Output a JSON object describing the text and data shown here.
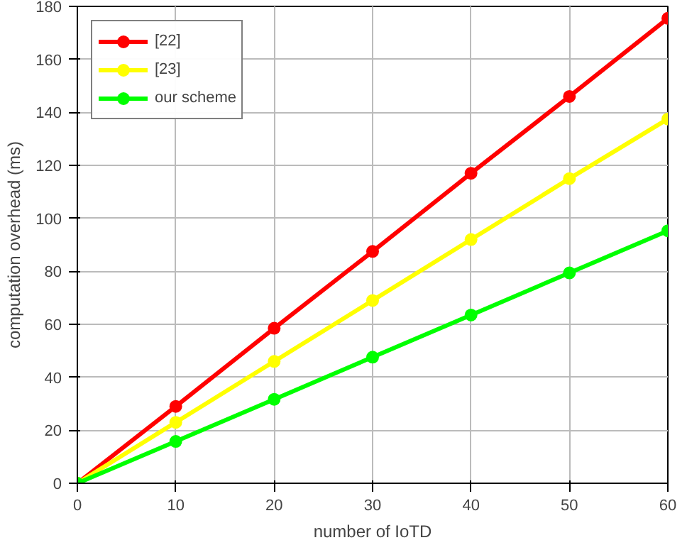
{
  "chart_data": {
    "type": "line",
    "xlabel": "number of IoTD",
    "ylabel": "computation overhead (ms)",
    "x": [
      0,
      10,
      20,
      30,
      40,
      50,
      60
    ],
    "series": [
      {
        "name": "[22]",
        "color": "#ff0000",
        "values": [
          0,
          29,
          58.5,
          87.5,
          117,
          146,
          175.5
        ]
      },
      {
        "name": "[23]",
        "color": "#ffff00",
        "values": [
          0,
          23,
          46,
          69,
          92,
          115,
          137.5
        ]
      },
      {
        "name": "our scheme",
        "color": "#00ff00",
        "values": [
          0,
          15.8,
          31.7,
          47.6,
          63.5,
          79.4,
          95.3
        ]
      }
    ],
    "xlim": [
      0,
      60
    ],
    "ylim": [
      0,
      180
    ],
    "xticks": [
      0,
      10,
      20,
      30,
      40,
      50,
      60
    ],
    "yticks": [
      0,
      20,
      40,
      60,
      80,
      100,
      120,
      140,
      160,
      180
    ],
    "grid": true,
    "legend": "top left",
    "marker": "circle",
    "line_style": "solid"
  }
}
